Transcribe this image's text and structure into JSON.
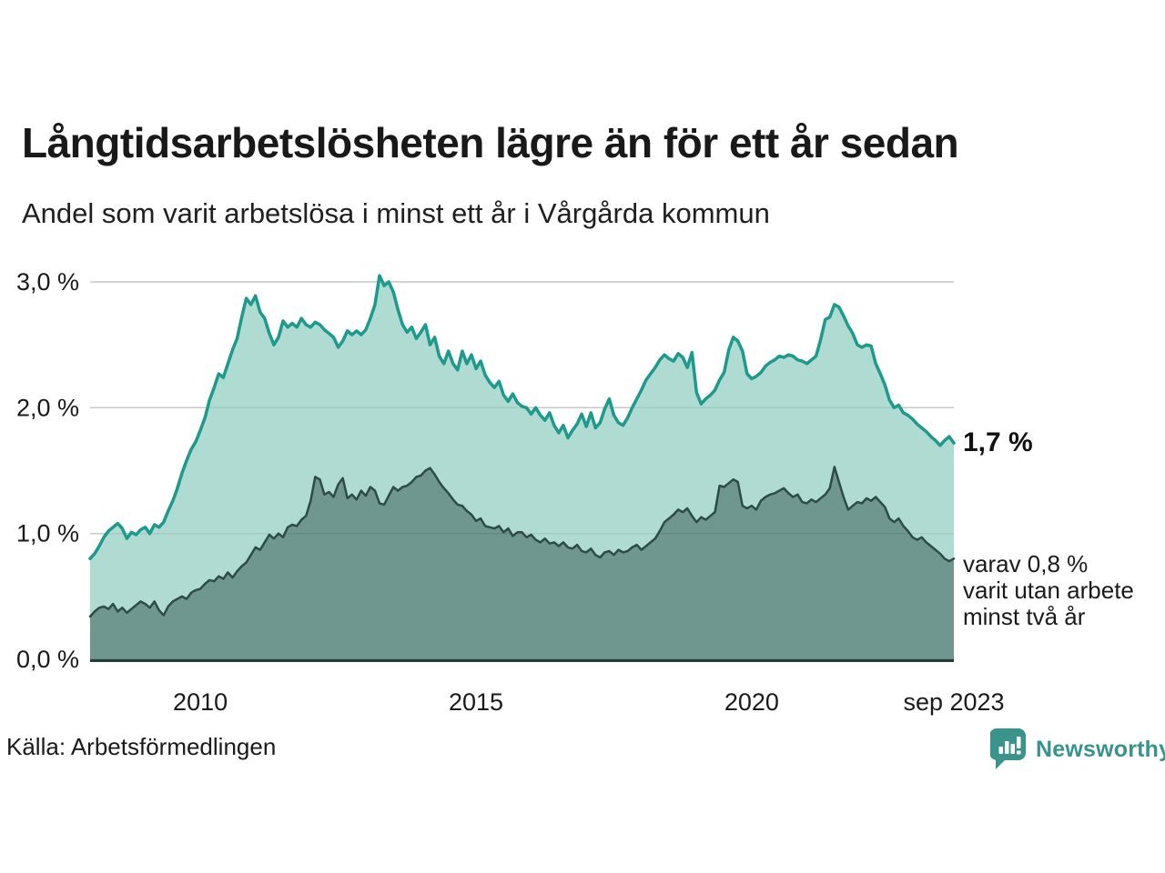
{
  "header": {
    "title": "Långtidsarbetslösheten lägre än för ett år sedan",
    "subtitle": "Andel som varit arbetslösa i minst ett år i Vårgårda kommun"
  },
  "chart_data": {
    "type": "area",
    "title": "Långtidsarbetslösheten lägre än för ett år sedan",
    "subtitle": "Andel som varit arbetslösa i minst ett år i Vårgårda kommun",
    "xlabel": "",
    "ylabel": "",
    "grid": true,
    "legend_position": "none",
    "x_domain": [
      2008.0,
      2023.6667
    ],
    "x_step": 0.0833333,
    "ylim": [
      0,
      3.2
    ],
    "colors": {
      "grid": "#d8d8d8",
      "axis": "#253a3a",
      "tick_text": "#1a1a1a"
    },
    "yticks": [
      {
        "value": 0,
        "label": "0,0 %"
      },
      {
        "value": 1,
        "label": "1,0 %"
      },
      {
        "value": 2,
        "label": "2,0 %"
      },
      {
        "value": 3,
        "label": "3,0 %"
      }
    ],
    "xticks": [
      {
        "t": 2010,
        "label": "2010"
      },
      {
        "t": 2015,
        "label": "2015"
      },
      {
        "t": 2020,
        "label": "2020"
      },
      {
        "t": 2023.6667,
        "label": "sep 2023"
      }
    ],
    "series": [
      {
        "name": "Arbetslösa minst ett år",
        "end_value_label": "1,7 %",
        "color_line": "#1d9a8b",
        "color_fill": "#afdbd3",
        "line_width": 3.5,
        "values": [
          0.8,
          0.84,
          0.9,
          0.97,
          1.02,
          1.05,
          1.08,
          1.04,
          0.96,
          1.01,
          0.99,
          1.03,
          1.05,
          1.0,
          1.07,
          1.05,
          1.09,
          1.18,
          1.26,
          1.36,
          1.48,
          1.58,
          1.67,
          1.73,
          1.82,
          1.92,
          2.06,
          2.16,
          2.27,
          2.24,
          2.35,
          2.46,
          2.55,
          2.72,
          2.87,
          2.82,
          2.89,
          2.76,
          2.71,
          2.59,
          2.5,
          2.56,
          2.69,
          2.64,
          2.67,
          2.64,
          2.71,
          2.66,
          2.64,
          2.68,
          2.66,
          2.62,
          2.59,
          2.56,
          2.48,
          2.53,
          2.61,
          2.58,
          2.61,
          2.58,
          2.62,
          2.71,
          2.82,
          3.05,
          2.97,
          3.0,
          2.92,
          2.78,
          2.66,
          2.6,
          2.64,
          2.55,
          2.6,
          2.66,
          2.5,
          2.56,
          2.41,
          2.35,
          2.45,
          2.35,
          2.3,
          2.45,
          2.35,
          2.42,
          2.31,
          2.37,
          2.26,
          2.2,
          2.16,
          2.21,
          2.1,
          2.05,
          2.11,
          2.04,
          2.01,
          2.0,
          1.95,
          2.0,
          1.94,
          1.9,
          1.96,
          1.86,
          1.8,
          1.86,
          1.76,
          1.82,
          1.87,
          1.95,
          1.85,
          1.96,
          1.84,
          1.88,
          1.99,
          2.07,
          1.94,
          1.88,
          1.86,
          1.92,
          2.0,
          2.07,
          2.14,
          2.22,
          2.27,
          2.32,
          2.38,
          2.42,
          2.39,
          2.37,
          2.43,
          2.4,
          2.32,
          2.44,
          2.12,
          2.03,
          2.07,
          2.1,
          2.14,
          2.22,
          2.28,
          2.46,
          2.56,
          2.53,
          2.45,
          2.27,
          2.23,
          2.25,
          2.28,
          2.33,
          2.36,
          2.38,
          2.41,
          2.4,
          2.42,
          2.41,
          2.38,
          2.37,
          2.35,
          2.38,
          2.41,
          2.54,
          2.7,
          2.72,
          2.82,
          2.8,
          2.73,
          2.65,
          2.59,
          2.5,
          2.48,
          2.5,
          2.49,
          2.35,
          2.27,
          2.18,
          2.06,
          2.0,
          2.02,
          1.96,
          1.94,
          1.91,
          1.87,
          1.84,
          1.81,
          1.77,
          1.74,
          1.7,
          1.74,
          1.77,
          1.72
        ]
      },
      {
        "name": "Varav utan arbete minst två år",
        "end_value_label": "0,8 %",
        "color_line": "#2e4b49",
        "color_fill": "#6f968f",
        "line_width": 2.5,
        "values": [
          0.34,
          0.38,
          0.41,
          0.42,
          0.4,
          0.44,
          0.38,
          0.41,
          0.37,
          0.4,
          0.43,
          0.46,
          0.44,
          0.41,
          0.46,
          0.39,
          0.35,
          0.42,
          0.46,
          0.48,
          0.5,
          0.48,
          0.53,
          0.55,
          0.56,
          0.6,
          0.63,
          0.62,
          0.66,
          0.64,
          0.69,
          0.65,
          0.7,
          0.74,
          0.77,
          0.83,
          0.89,
          0.87,
          0.93,
          0.99,
          0.96,
          1.0,
          0.97,
          1.05,
          1.07,
          1.06,
          1.11,
          1.14,
          1.26,
          1.45,
          1.43,
          1.31,
          1.33,
          1.29,
          1.39,
          1.44,
          1.28,
          1.31,
          1.27,
          1.34,
          1.3,
          1.37,
          1.34,
          1.24,
          1.23,
          1.3,
          1.37,
          1.34,
          1.37,
          1.38,
          1.41,
          1.45,
          1.46,
          1.5,
          1.52,
          1.47,
          1.41,
          1.36,
          1.32,
          1.27,
          1.23,
          1.22,
          1.18,
          1.15,
          1.1,
          1.12,
          1.06,
          1.05,
          1.04,
          1.06,
          1.01,
          1.04,
          0.98,
          1.01,
          1.01,
          0.97,
          0.99,
          0.95,
          0.93,
          0.96,
          0.92,
          0.93,
          0.9,
          0.93,
          0.89,
          0.88,
          0.91,
          0.86,
          0.85,
          0.88,
          0.83,
          0.81,
          0.85,
          0.86,
          0.83,
          0.87,
          0.85,
          0.86,
          0.89,
          0.91,
          0.87,
          0.9,
          0.93,
          0.96,
          1.02,
          1.09,
          1.12,
          1.15,
          1.19,
          1.17,
          1.2,
          1.14,
          1.09,
          1.13,
          1.11,
          1.14,
          1.17,
          1.38,
          1.37,
          1.4,
          1.43,
          1.41,
          1.22,
          1.2,
          1.22,
          1.19,
          1.26,
          1.29,
          1.31,
          1.32,
          1.34,
          1.36,
          1.32,
          1.29,
          1.31,
          1.25,
          1.24,
          1.27,
          1.25,
          1.28,
          1.31,
          1.36,
          1.53,
          1.41,
          1.29,
          1.19,
          1.22,
          1.25,
          1.24,
          1.28,
          1.26,
          1.29,
          1.25,
          1.21,
          1.12,
          1.09,
          1.12,
          1.06,
          1.02,
          0.97,
          0.95,
          0.97,
          0.93,
          0.9,
          0.87,
          0.84,
          0.8,
          0.78,
          0.8
        ]
      }
    ]
  },
  "annotations": {
    "end_value_label": "1,7 %",
    "note_lines": [
      "varav 0,8 %",
      "varit utan arbete",
      "minst två år"
    ]
  },
  "footer": {
    "source": "Källa: Arbetsförmedlingen",
    "brand": "Newsworthy",
    "brand_color": "#37948c"
  }
}
